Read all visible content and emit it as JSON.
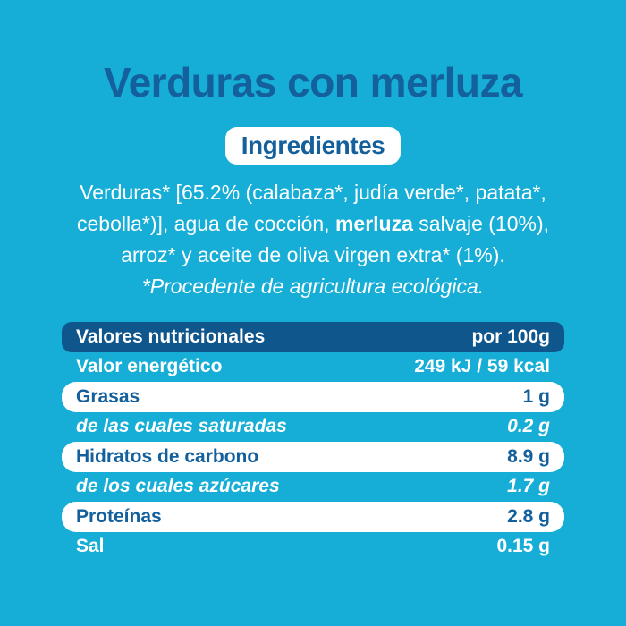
{
  "page": {
    "background_color": "#16aed7",
    "brand_blue": "#14609c",
    "header_navy": "#0f568c"
  },
  "header": {
    "title": "Verduras con merluza"
  },
  "ingredients": {
    "badge_label": "Ingredientes",
    "line1": "Verduras* [65.2% (calabaza*, judía verde*, patata*,",
    "line2_pre": "cebolla*)], agua de cocción, ",
    "line2_bold": "merluza",
    "line2_post": " salvaje (10%),",
    "line3": "arroz* y aceite de oliva virgen extra* (1%).",
    "organic_note": "*Procedente de agricultura ecológica."
  },
  "nutrition": {
    "header": {
      "label": "Valores nutricionales",
      "value": "por 100g"
    },
    "rows": [
      {
        "label": "Valor energético",
        "value": "249 kJ / 59 kcal"
      },
      {
        "label": "Grasas",
        "value": "1 g"
      },
      {
        "label": "de las cuales saturadas",
        "value": "0.2 g"
      },
      {
        "label": "Hidratos de carbono",
        "value": "8.9 g"
      },
      {
        "label": "de los cuales azúcares",
        "value": "1.7 g"
      },
      {
        "label": "Proteínas",
        "value": "2.8 g"
      },
      {
        "label": "Sal",
        "value": "0.15 g"
      }
    ]
  }
}
